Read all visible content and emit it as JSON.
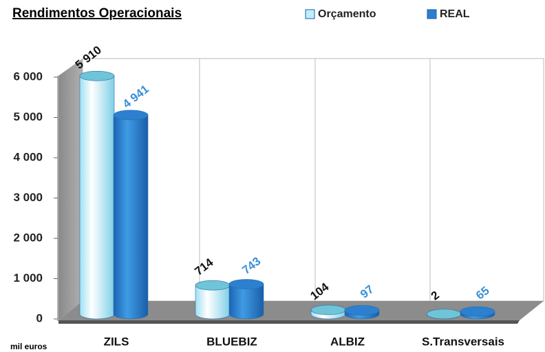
{
  "chart_data": {
    "type": "bar3d",
    "title": "Rendimentos Operacionais",
    "y_unit": "mil euros",
    "categories": [
      "ZILS",
      "BLUEBIZ",
      "ALBIZ",
      "S.Transversais"
    ],
    "series": [
      {
        "name": "Orçamento",
        "color": "#bdeefa",
        "values": [
          5910,
          714,
          104,
          2
        ],
        "value_labels": [
          "5 910",
          "714",
          "104",
          "2"
        ]
      },
      {
        "name": "REAL",
        "color": "#2a7fd0",
        "values": [
          4941,
          743,
          97,
          65
        ],
        "value_labels": [
          "4 941",
          "743",
          "97",
          "65"
        ]
      }
    ],
    "ylim": [
      0,
      6000
    ],
    "yticks": [
      0,
      {
        "value": 1000,
        "label": "1 000"
      },
      {
        "value": 2000,
        "label": "2 000"
      },
      {
        "value": 3000,
        "label": "3 000"
      },
      {
        "value": 4000,
        "label": "4 000"
      },
      {
        "value": 5000,
        "label": "5 000"
      },
      {
        "value": 6000,
        "label": "6 000"
      }
    ],
    "legend": "top"
  }
}
